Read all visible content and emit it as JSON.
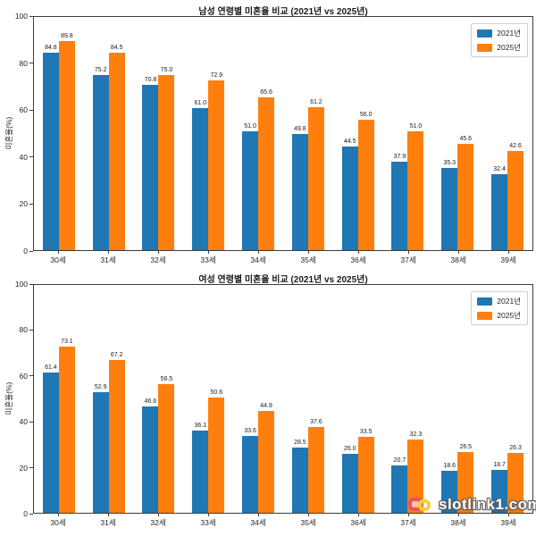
{
  "watermark": {
    "text": "slotlink1.com",
    "logo_colors": [
      "#e8506a",
      "#f2cf3c"
    ]
  },
  "chart_data": [
    {
      "type": "bar",
      "title": "남성 연령별 미혼율 비교 (2021년 vs 2025년)",
      "ylabel": "미혼율(%)",
      "xlabel": "",
      "categories": [
        "30세",
        "31세",
        "32세",
        "33세",
        "34세",
        "35세",
        "36세",
        "37세",
        "38세",
        "39세"
      ],
      "series": [
        {
          "name": "2021년",
          "color": "#1f77b4",
          "values": [
            84.8,
            75.2,
            70.8,
            61.0,
            51.0,
            49.8,
            44.5,
            37.9,
            35.3,
            32.4
          ]
        },
        {
          "name": "2025년",
          "color": "#ff7f0e",
          "values": [
            89.8,
            84.5,
            75.0,
            72.9,
            65.6,
            61.2,
            56.0,
            51.0,
            45.6,
            42.6
          ]
        }
      ],
      "ylim": [
        0,
        100
      ],
      "yticks": [
        0,
        20,
        40,
        60,
        80,
        100
      ],
      "grid": false,
      "legend_position": "upper right"
    },
    {
      "type": "bar",
      "title": "여성 연령별 미혼율 비교 (2021년 vs 2025년)",
      "ylabel": "미혼율(%)",
      "xlabel": "",
      "categories": [
        "30세",
        "31세",
        "32세",
        "33세",
        "34세",
        "35세",
        "36세",
        "37세",
        "38세",
        "39세"
      ],
      "series": [
        {
          "name": "2021년",
          "color": "#1f77b4",
          "values": [
            61.4,
            52.9,
            46.6,
            36.1,
            33.6,
            28.5,
            26.0,
            20.7,
            18.6,
            18.7
          ]
        },
        {
          "name": "2025년",
          "color": "#ff7f0e",
          "values": [
            73.1,
            67.2,
            56.5,
            50.6,
            44.8,
            37.6,
            33.5,
            32.3,
            26.5,
            26.3
          ]
        }
      ],
      "ylim": [
        0,
        100
      ],
      "yticks": [
        0,
        20,
        40,
        60,
        80,
        100
      ],
      "grid": false,
      "legend_position": "upper right"
    }
  ]
}
